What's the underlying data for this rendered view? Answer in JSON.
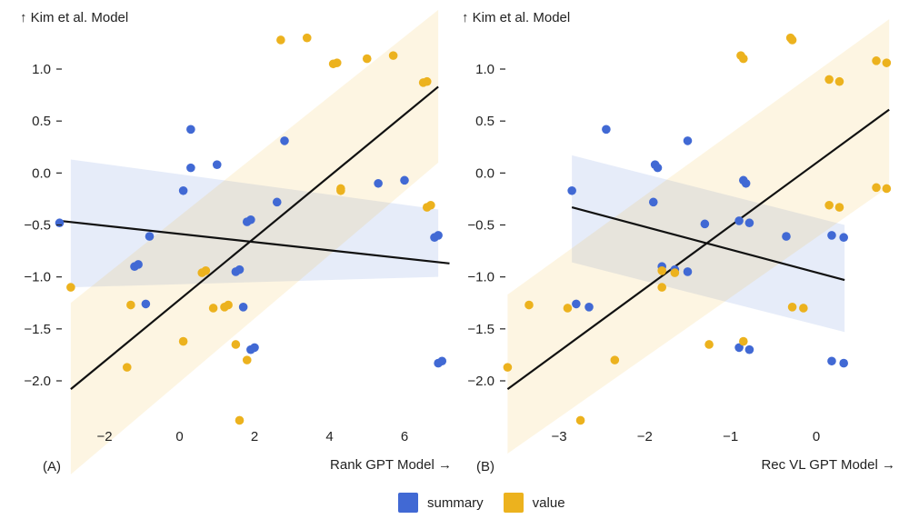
{
  "colors": {
    "summary": "#4169d4",
    "value": "#ecb21e",
    "fit_line": "#111111"
  },
  "legend": [
    {
      "label": "summary",
      "color": "#4169d4"
    },
    {
      "label": "value",
      "color": "#ecb21e"
    }
  ],
  "chart_data": [
    {
      "type": "scatter",
      "panel_label": "(A)",
      "xlabel": "Rank GPT Model →",
      "ylabel": "↑ Kim et al. Model",
      "xlim": [
        -3,
        7
      ],
      "ylim": [
        -2.6,
        1.5
      ],
      "xticks": [
        -2,
        0,
        2,
        4,
        6
      ],
      "xtick_labels": [
        "−2",
        "0",
        "2",
        "4",
        "6"
      ],
      "yticks": [
        1.0,
        0.5,
        0.0,
        -0.5,
        -1.0,
        -1.5,
        -2.0
      ],
      "ytick_labels": [
        "1.0",
        "0.5",
        "0.0",
        "−0.5",
        "−1.0",
        "−1.5",
        "−2.0"
      ],
      "series": [
        {
          "name": "summary",
          "points": [
            [
              -3.2,
              -0.48
            ],
            [
              -1.2,
              -0.9
            ],
            [
              -1.1,
              -0.88
            ],
            [
              -0.9,
              -1.26
            ],
            [
              -0.8,
              -0.61
            ],
            [
              0.1,
              -0.17
            ],
            [
              0.3,
              0.42
            ],
            [
              0.3,
              0.05
            ],
            [
              1.0,
              0.08
            ],
            [
              1.5,
              -0.95
            ],
            [
              1.6,
              -0.93
            ],
            [
              1.7,
              -1.29
            ],
            [
              1.8,
              -0.47
            ],
            [
              1.9,
              -0.45
            ],
            [
              1.9,
              -1.7
            ],
            [
              2.0,
              -1.68
            ],
            [
              2.6,
              -0.28
            ],
            [
              2.8,
              0.31
            ],
            [
              5.3,
              -0.1
            ],
            [
              6.0,
              -0.07
            ],
            [
              6.8,
              -0.62
            ],
            [
              6.9,
              -0.6
            ],
            [
              6.9,
              -1.83
            ],
            [
              7.0,
              -1.81
            ]
          ],
          "fit": {
            "x": [
              -3.2,
              7.2
            ],
            "y": [
              -0.46,
              -0.87
            ]
          },
          "ci_band": {
            "x": [
              -2.9,
              6.9
            ],
            "lower": [
              -1.1,
              -1.0
            ],
            "upper": [
              0.13,
              -0.35
            ]
          }
        },
        {
          "name": "value",
          "points": [
            [
              -2.9,
              -1.1
            ],
            [
              -1.4,
              -1.87
            ],
            [
              -1.3,
              -1.27
            ],
            [
              0.1,
              -1.62
            ],
            [
              0.6,
              -0.96
            ],
            [
              0.7,
              -0.94
            ],
            [
              0.9,
              -1.3
            ],
            [
              1.2,
              -1.29
            ],
            [
              1.3,
              -1.27
            ],
            [
              1.5,
              -1.65
            ],
            [
              1.6,
              -2.38
            ],
            [
              1.8,
              -1.8
            ],
            [
              2.7,
              1.28
            ],
            [
              3.4,
              1.3
            ],
            [
              4.1,
              1.05
            ],
            [
              4.2,
              1.06
            ],
            [
              4.3,
              -0.17
            ],
            [
              4.3,
              -0.15
            ],
            [
              5.0,
              1.1
            ],
            [
              5.7,
              1.13
            ],
            [
              6.5,
              0.87
            ],
            [
              6.6,
              0.88
            ],
            [
              6.6,
              -0.33
            ],
            [
              6.7,
              -0.31
            ]
          ],
          "fit": {
            "x": [
              -2.9,
              6.9
            ],
            "y": [
              -2.08,
              0.83
            ]
          },
          "ci_band": {
            "x": [
              -2.9,
              6.9
            ],
            "lower": [
              -2.9,
              0.1
            ],
            "upper": [
              -1.25,
              1.57
            ]
          }
        }
      ]
    },
    {
      "type": "scatter",
      "panel_label": "(B)",
      "xlabel": "Rec VL GPT Model →",
      "ylabel": "↑ Kim et al. Model",
      "xlim": [
        -3.6,
        0.85
      ],
      "ylim": [
        -2.6,
        1.5
      ],
      "xticks": [
        -3,
        -2,
        -1,
        0
      ],
      "xtick_labels": [
        "−3",
        "−2",
        "−1",
        "0"
      ],
      "yticks": [
        1.0,
        0.5,
        0.0,
        -0.5,
        -1.0,
        -1.5,
        -2.0
      ],
      "ytick_labels": [
        "1.0",
        "0.5",
        "0.0",
        "−0.5",
        "−1.0",
        "−1.5",
        "−2.0"
      ],
      "series": [
        {
          "name": "summary",
          "points": [
            [
              -2.85,
              -0.17
            ],
            [
              -2.8,
              -1.26
            ],
            [
              -2.65,
              -1.29
            ],
            [
              -2.45,
              0.42
            ],
            [
              -1.9,
              -0.28
            ],
            [
              -1.88,
              0.08
            ],
            [
              -1.85,
              0.05
            ],
            [
              -1.8,
              -0.9
            ],
            [
              -1.65,
              -0.93
            ],
            [
              -1.5,
              -0.95
            ],
            [
              -1.5,
              0.31
            ],
            [
              -1.3,
              -0.49
            ],
            [
              -0.9,
              -0.46
            ],
            [
              -0.9,
              -1.68
            ],
            [
              -0.85,
              -0.07
            ],
            [
              -0.82,
              -0.1
            ],
            [
              -0.78,
              -0.48
            ],
            [
              -0.78,
              -1.7
            ],
            [
              -0.35,
              -0.61
            ],
            [
              0.18,
              -0.6
            ],
            [
              0.18,
              -1.81
            ],
            [
              0.32,
              -0.62
            ],
            [
              0.32,
              -1.83
            ]
          ],
          "fit": {
            "x": [
              -2.85,
              0.33
            ],
            "y": [
              -0.33,
              -1.03
            ]
          },
          "ci_band": {
            "x": [
              -2.85,
              0.33
            ],
            "lower": [
              -0.86,
              -1.53
            ],
            "upper": [
              0.17,
              -0.5
            ]
          }
        },
        {
          "name": "value",
          "points": [
            [
              -3.6,
              -1.87
            ],
            [
              -3.35,
              -1.27
            ],
            [
              -2.9,
              -1.3
            ],
            [
              -2.75,
              -2.38
            ],
            [
              -2.35,
              -1.8
            ],
            [
              -1.8,
              -0.94
            ],
            [
              -1.8,
              -1.1
            ],
            [
              -1.65,
              -0.96
            ],
            [
              -1.25,
              -1.65
            ],
            [
              -0.88,
              1.13
            ],
            [
              -0.85,
              1.1
            ],
            [
              -0.85,
              -1.62
            ],
            [
              -0.3,
              1.3
            ],
            [
              -0.28,
              1.28
            ],
            [
              -0.28,
              -1.29
            ],
            [
              -0.15,
              -1.3
            ],
            [
              0.15,
              0.9
            ],
            [
              0.15,
              -0.31
            ],
            [
              0.27,
              0.88
            ],
            [
              0.27,
              -0.33
            ],
            [
              0.7,
              1.08
            ],
            [
              0.7,
              -0.14
            ],
            [
              0.82,
              1.06
            ],
            [
              0.82,
              -0.15
            ]
          ],
          "fit": {
            "x": [
              -3.6,
              0.85
            ],
            "y": [
              -2.08,
              0.61
            ]
          },
          "ci_band": {
            "x": [
              -3.6,
              0.85
            ],
            "lower": [
              -2.7,
              -0.13
            ],
            "upper": [
              -1.17,
              1.48
            ]
          }
        }
      ]
    }
  ]
}
